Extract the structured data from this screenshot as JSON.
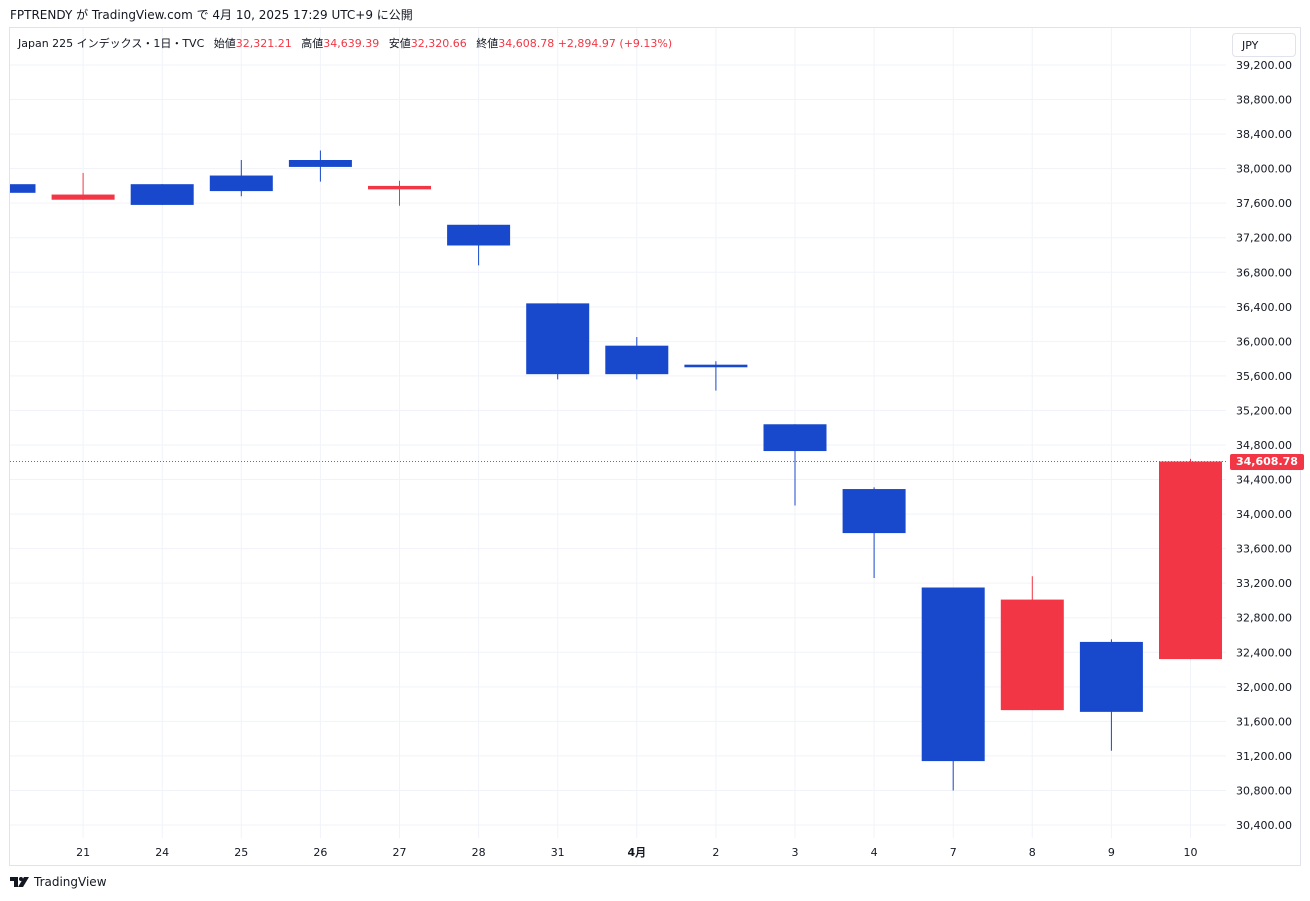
{
  "publisher": "FPTRENDY が TradingView.com で 4月 10, 2025 17:29 UTC+9 に公開",
  "legend": {
    "symbol": "Japan 225 インデックス・1日・TVC",
    "open_label": "始値",
    "open": "32,321.21",
    "high_label": "高値",
    "high": "34,639.39",
    "low_label": "安値",
    "low": "32,320.66",
    "close_label": "終値",
    "close": "34,608.78",
    "change": "+2,894.97 (+9.13%)"
  },
  "currency": "JPY",
  "last_price_label": "34,608.78",
  "footer": {
    "brand": "TradingView",
    "logo_icon": "tradingview-logo-icon"
  },
  "colors": {
    "up": "#f23645",
    "down": "#1848cc",
    "grid": "#f0f3fa",
    "text": "#131722"
  },
  "chart_data": {
    "type": "candlestick",
    "ylim": [
      30200,
      39400
    ],
    "y_ticks": [
      {
        "value": 30400,
        "label": "30,400.00"
      },
      {
        "value": 30800,
        "label": "30,800.00"
      },
      {
        "value": 31200,
        "label": "31,200.00"
      },
      {
        "value": 31600,
        "label": "31,600.00"
      },
      {
        "value": 32000,
        "label": "32,000.00"
      },
      {
        "value": 32400,
        "label": "32,400.00"
      },
      {
        "value": 32800,
        "label": "32,800.00"
      },
      {
        "value": 33200,
        "label": "33,200.00"
      },
      {
        "value": 33600,
        "label": "33,600.00"
      },
      {
        "value": 34000,
        "label": "34,000.00"
      },
      {
        "value": 34400,
        "label": "34,400.00"
      },
      {
        "value": 34800,
        "label": "34,800.00"
      },
      {
        "value": 35200,
        "label": "35,200.00"
      },
      {
        "value": 35600,
        "label": "35,600.00"
      },
      {
        "value": 36000,
        "label": "36,000.00"
      },
      {
        "value": 36400,
        "label": "36,400.00"
      },
      {
        "value": 36800,
        "label": "36,800.00"
      },
      {
        "value": 37200,
        "label": "37,200.00"
      },
      {
        "value": 37600,
        "label": "37,600.00"
      },
      {
        "value": 38000,
        "label": "38,000.00"
      },
      {
        "value": 38400,
        "label": "38,400.00"
      },
      {
        "value": 38800,
        "label": "38,800.00"
      },
      {
        "value": 39200,
        "label": "39,200.00"
      }
    ],
    "last_price": 34608.78,
    "candles": [
      {
        "label": "",
        "open": 37820,
        "high": 37820,
        "low": 37720,
        "close": 37720
      },
      {
        "label": "21",
        "open": 37640,
        "high": 37950,
        "low": 37640,
        "close": 37700
      },
      {
        "label": "24",
        "open": 37820,
        "high": 37820,
        "low": 37580,
        "close": 37580
      },
      {
        "label": "25",
        "open": 37920,
        "high": 38100,
        "low": 37680,
        "close": 37740
      },
      {
        "label": "26",
        "open": 38100,
        "high": 38210,
        "low": 37850,
        "close": 38020
      },
      {
        "label": "27",
        "open": 37760,
        "high": 37860,
        "low": 37570,
        "close": 37800
      },
      {
        "label": "28",
        "open": 37350,
        "high": 37350,
        "low": 36880,
        "close": 37110
      },
      {
        "label": "31",
        "open": 36440,
        "high": 36440,
        "low": 35560,
        "close": 35620
      },
      {
        "label": "4月",
        "open": 35950,
        "high": 36050,
        "low": 35560,
        "close": 35620
      },
      {
        "label": "2",
        "open": 35730,
        "high": 35770,
        "low": 35430,
        "close": 35700
      },
      {
        "label": "3",
        "open": 35040,
        "high": 35040,
        "low": 34100,
        "close": 34730
      },
      {
        "label": "4",
        "open": 34290,
        "high": 34310,
        "low": 33260,
        "close": 33780
      },
      {
        "label": "7",
        "open": 33150,
        "high": 33150,
        "low": 30800,
        "close": 31140
      },
      {
        "label": "8",
        "open": 31730,
        "high": 33280,
        "low": 31730,
        "close": 33010
      },
      {
        "label": "9",
        "open": 32520,
        "high": 32550,
        "low": 31260,
        "close": 31710
      },
      {
        "label": "10",
        "open": 32321.21,
        "high": 34639.39,
        "low": 32320.66,
        "close": 34608.78
      }
    ]
  }
}
